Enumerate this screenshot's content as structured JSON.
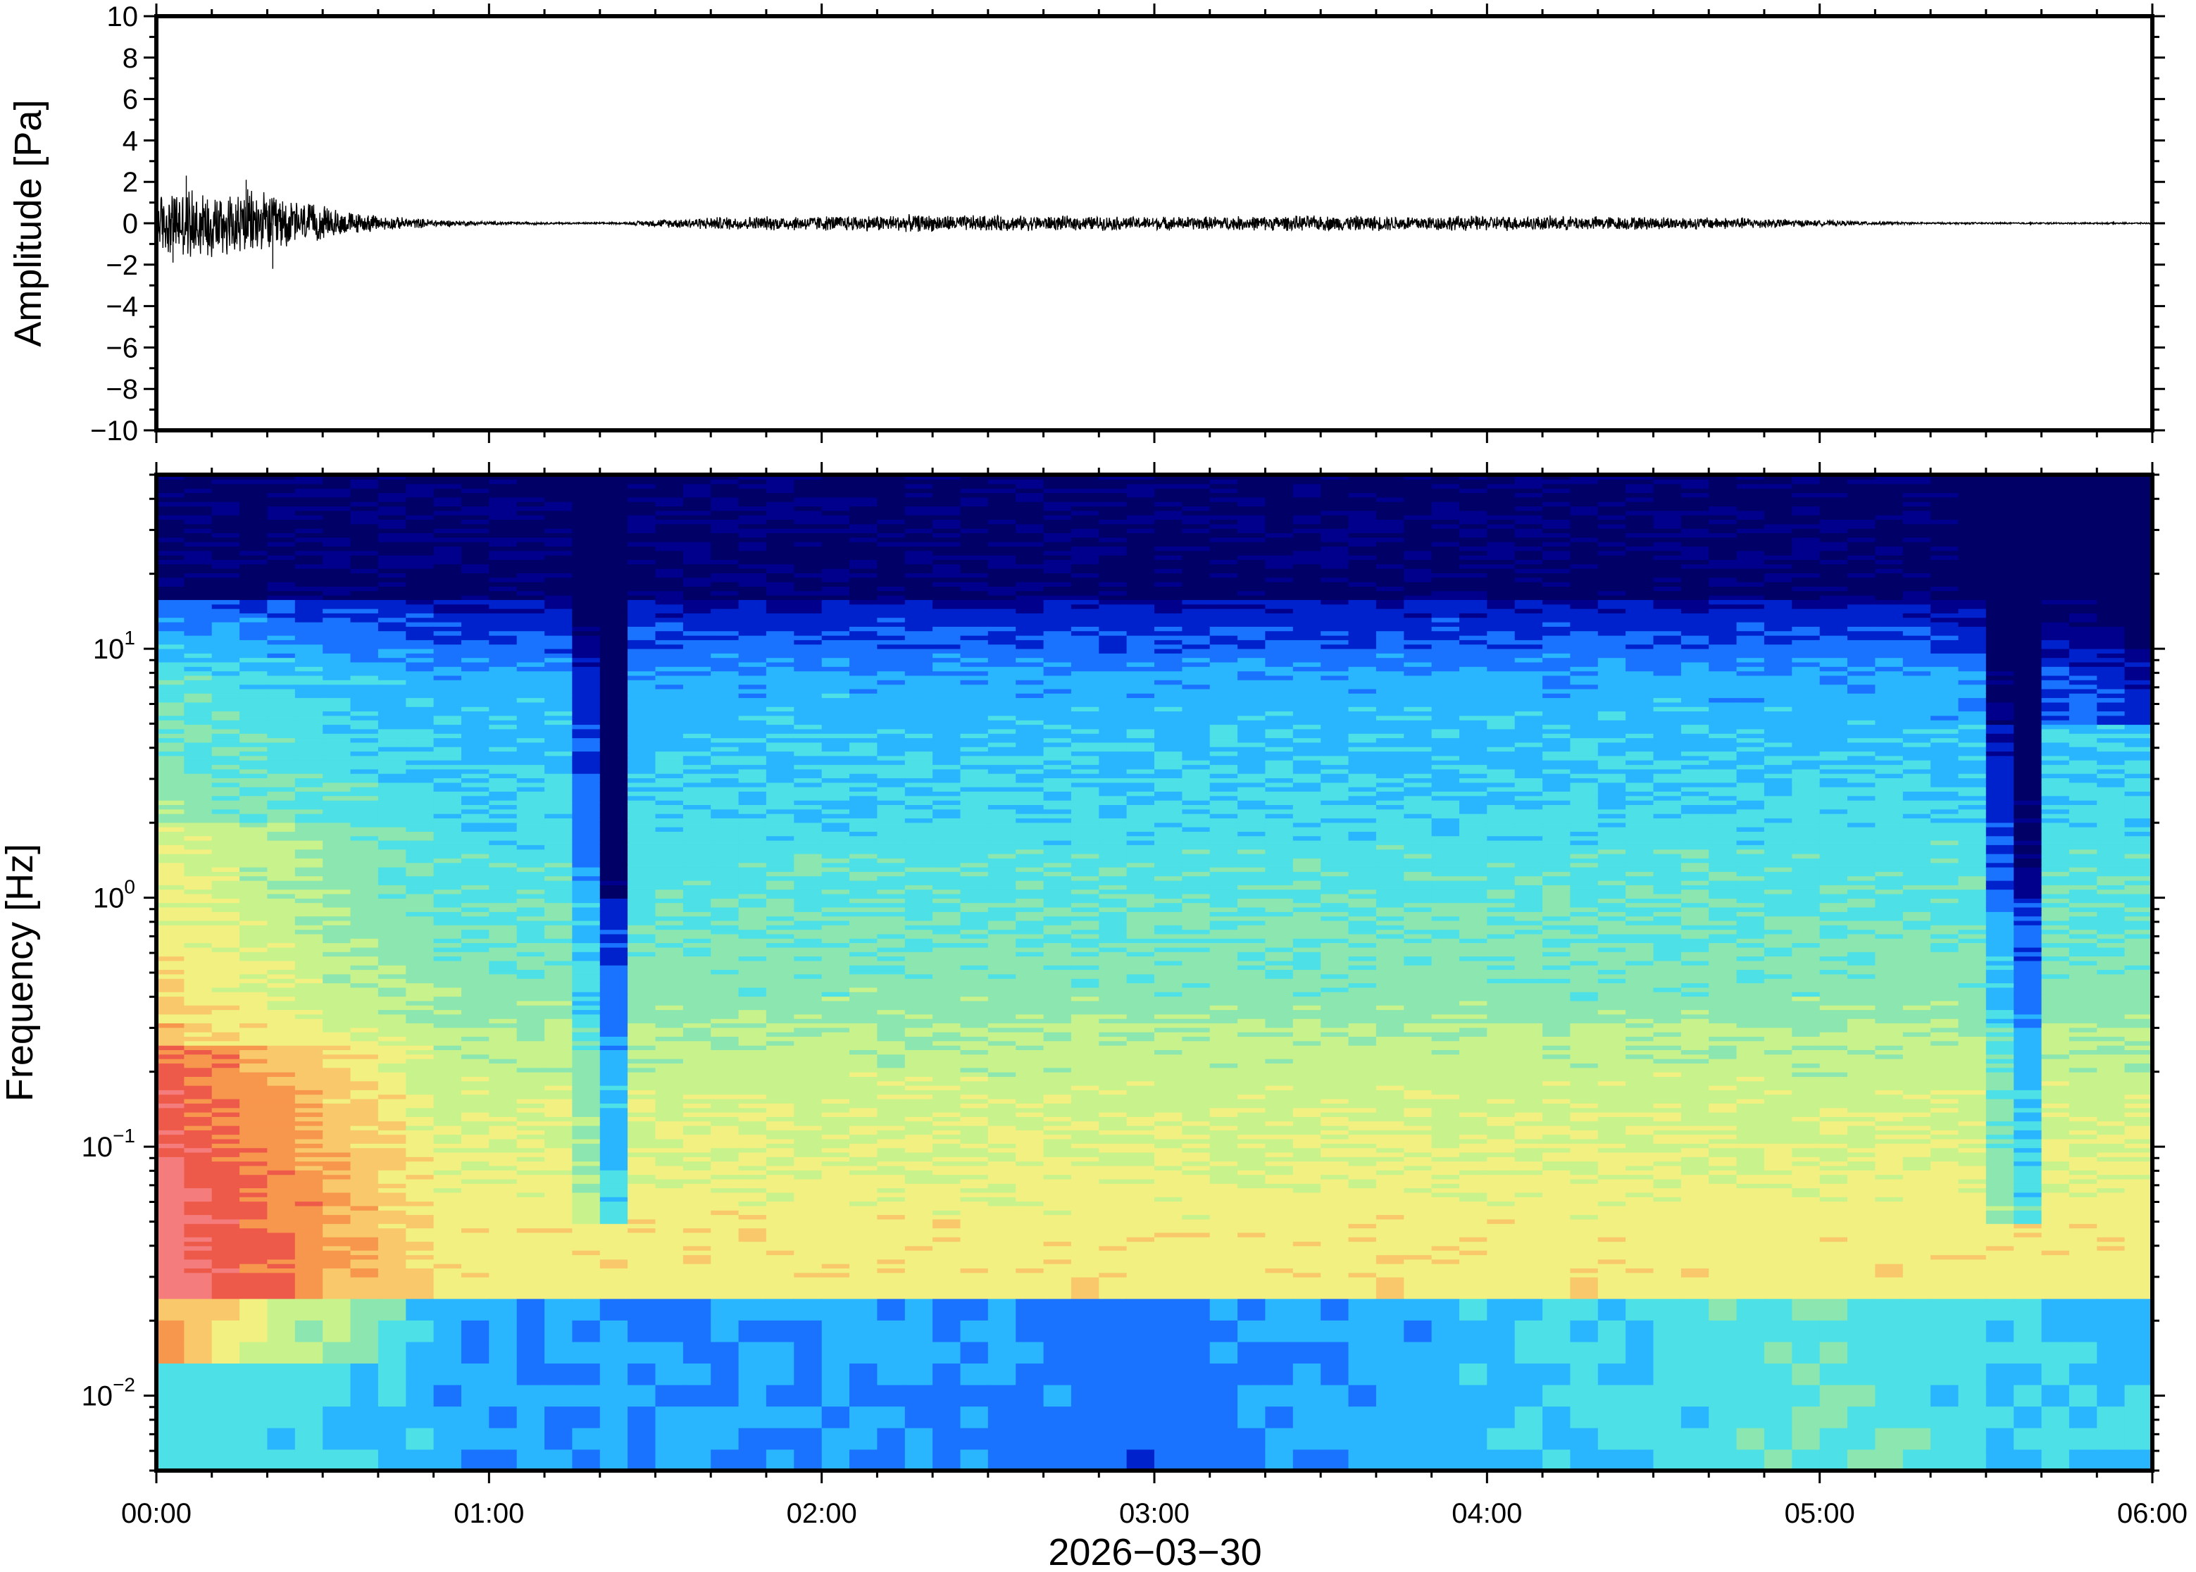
{
  "colors": {
    "background": "#ffffff",
    "frame": "#000000",
    "waveform": "#000000",
    "colormap": [
      "#000066",
      "#00008c",
      "#0022cc",
      "#1a73ff",
      "#29b6ff",
      "#4de0e6",
      "#8ce6b0",
      "#c8f28c",
      "#f2f080",
      "#f9c86a",
      "#f7964d",
      "#ee5a4a",
      "#f57c7c"
    ]
  },
  "chart_data": [
    {
      "type": "line",
      "name": "waveform",
      "ylabel": "Amplitude [Pa]",
      "ylim": [
        -10,
        10
      ],
      "yticks": [
        -10,
        -8,
        -6,
        -4,
        -2,
        0,
        2,
        4,
        6,
        8,
        10
      ],
      "ytick_labels": [
        "−10",
        "−8",
        "−6",
        "−4",
        "−2",
        "0",
        "2",
        "4",
        "6",
        "8",
        "10"
      ],
      "xlim_hours": [
        0,
        6
      ],
      "grid": false,
      "envelope": [
        [
          0.0,
          1.6
        ],
        [
          0.1,
          1.9
        ],
        [
          0.2,
          1.8
        ],
        [
          0.3,
          1.7
        ],
        [
          0.4,
          1.3
        ],
        [
          0.5,
          0.9
        ],
        [
          0.6,
          0.55
        ],
        [
          0.7,
          0.35
        ],
        [
          0.8,
          0.25
        ],
        [
          0.9,
          0.15
        ],
        [
          1.0,
          0.1
        ],
        [
          1.2,
          0.05
        ],
        [
          1.4,
          0.05
        ],
        [
          1.5,
          0.2
        ],
        [
          1.7,
          0.35
        ],
        [
          2.0,
          0.4
        ],
        [
          2.3,
          0.45
        ],
        [
          2.6,
          0.4
        ],
        [
          3.0,
          0.35
        ],
        [
          3.5,
          0.4
        ],
        [
          4.0,
          0.4
        ],
        [
          4.5,
          0.35
        ],
        [
          4.8,
          0.3
        ],
        [
          5.0,
          0.15
        ],
        [
          5.3,
          0.05
        ],
        [
          6.0,
          0.04
        ]
      ],
      "peaks": [
        [
          0.09,
          2.3
        ],
        [
          0.27,
          2.1
        ],
        [
          0.35,
          -2.2
        ],
        [
          0.05,
          -1.9
        ]
      ]
    },
    {
      "type": "heatmap",
      "name": "spectrogram",
      "ylabel": "Frequency [Hz]",
      "yscale": "log",
      "ylim": [
        0.005,
        50
      ],
      "yticks": [
        0.01,
        0.1,
        1,
        10
      ],
      "ytick_labels": [
        {
          "base": "10",
          "exp": "−2"
        },
        {
          "base": "10",
          "exp": "−1"
        },
        {
          "base": "10",
          "exp": "0"
        },
        {
          "base": "10",
          "exp": "1"
        }
      ],
      "xlim_hours": [
        0,
        6
      ],
      "xticks_hours": [
        0,
        1,
        2,
        3,
        4,
        5,
        6
      ],
      "xtick_labels": [
        "00:00",
        "01:00",
        "02:00",
        "03:00",
        "04:00",
        "05:00",
        "06:00"
      ],
      "xlabel": "2026−03−30",
      "power_profile": {
        "low_band": [
          [
            0.0,
            0.45
          ],
          [
            0.5,
            0.4
          ],
          [
            1.0,
            0.3
          ],
          [
            2.0,
            0.3
          ],
          [
            3.0,
            0.25
          ],
          [
            4.0,
            0.35
          ],
          [
            5.0,
            0.45
          ],
          [
            6.0,
            0.35
          ]
        ],
        "notches": [
          [
            1.35,
            0.08,
            0.45
          ],
          [
            5.6,
            0.1,
            0.4
          ]
        ]
      }
    }
  ]
}
